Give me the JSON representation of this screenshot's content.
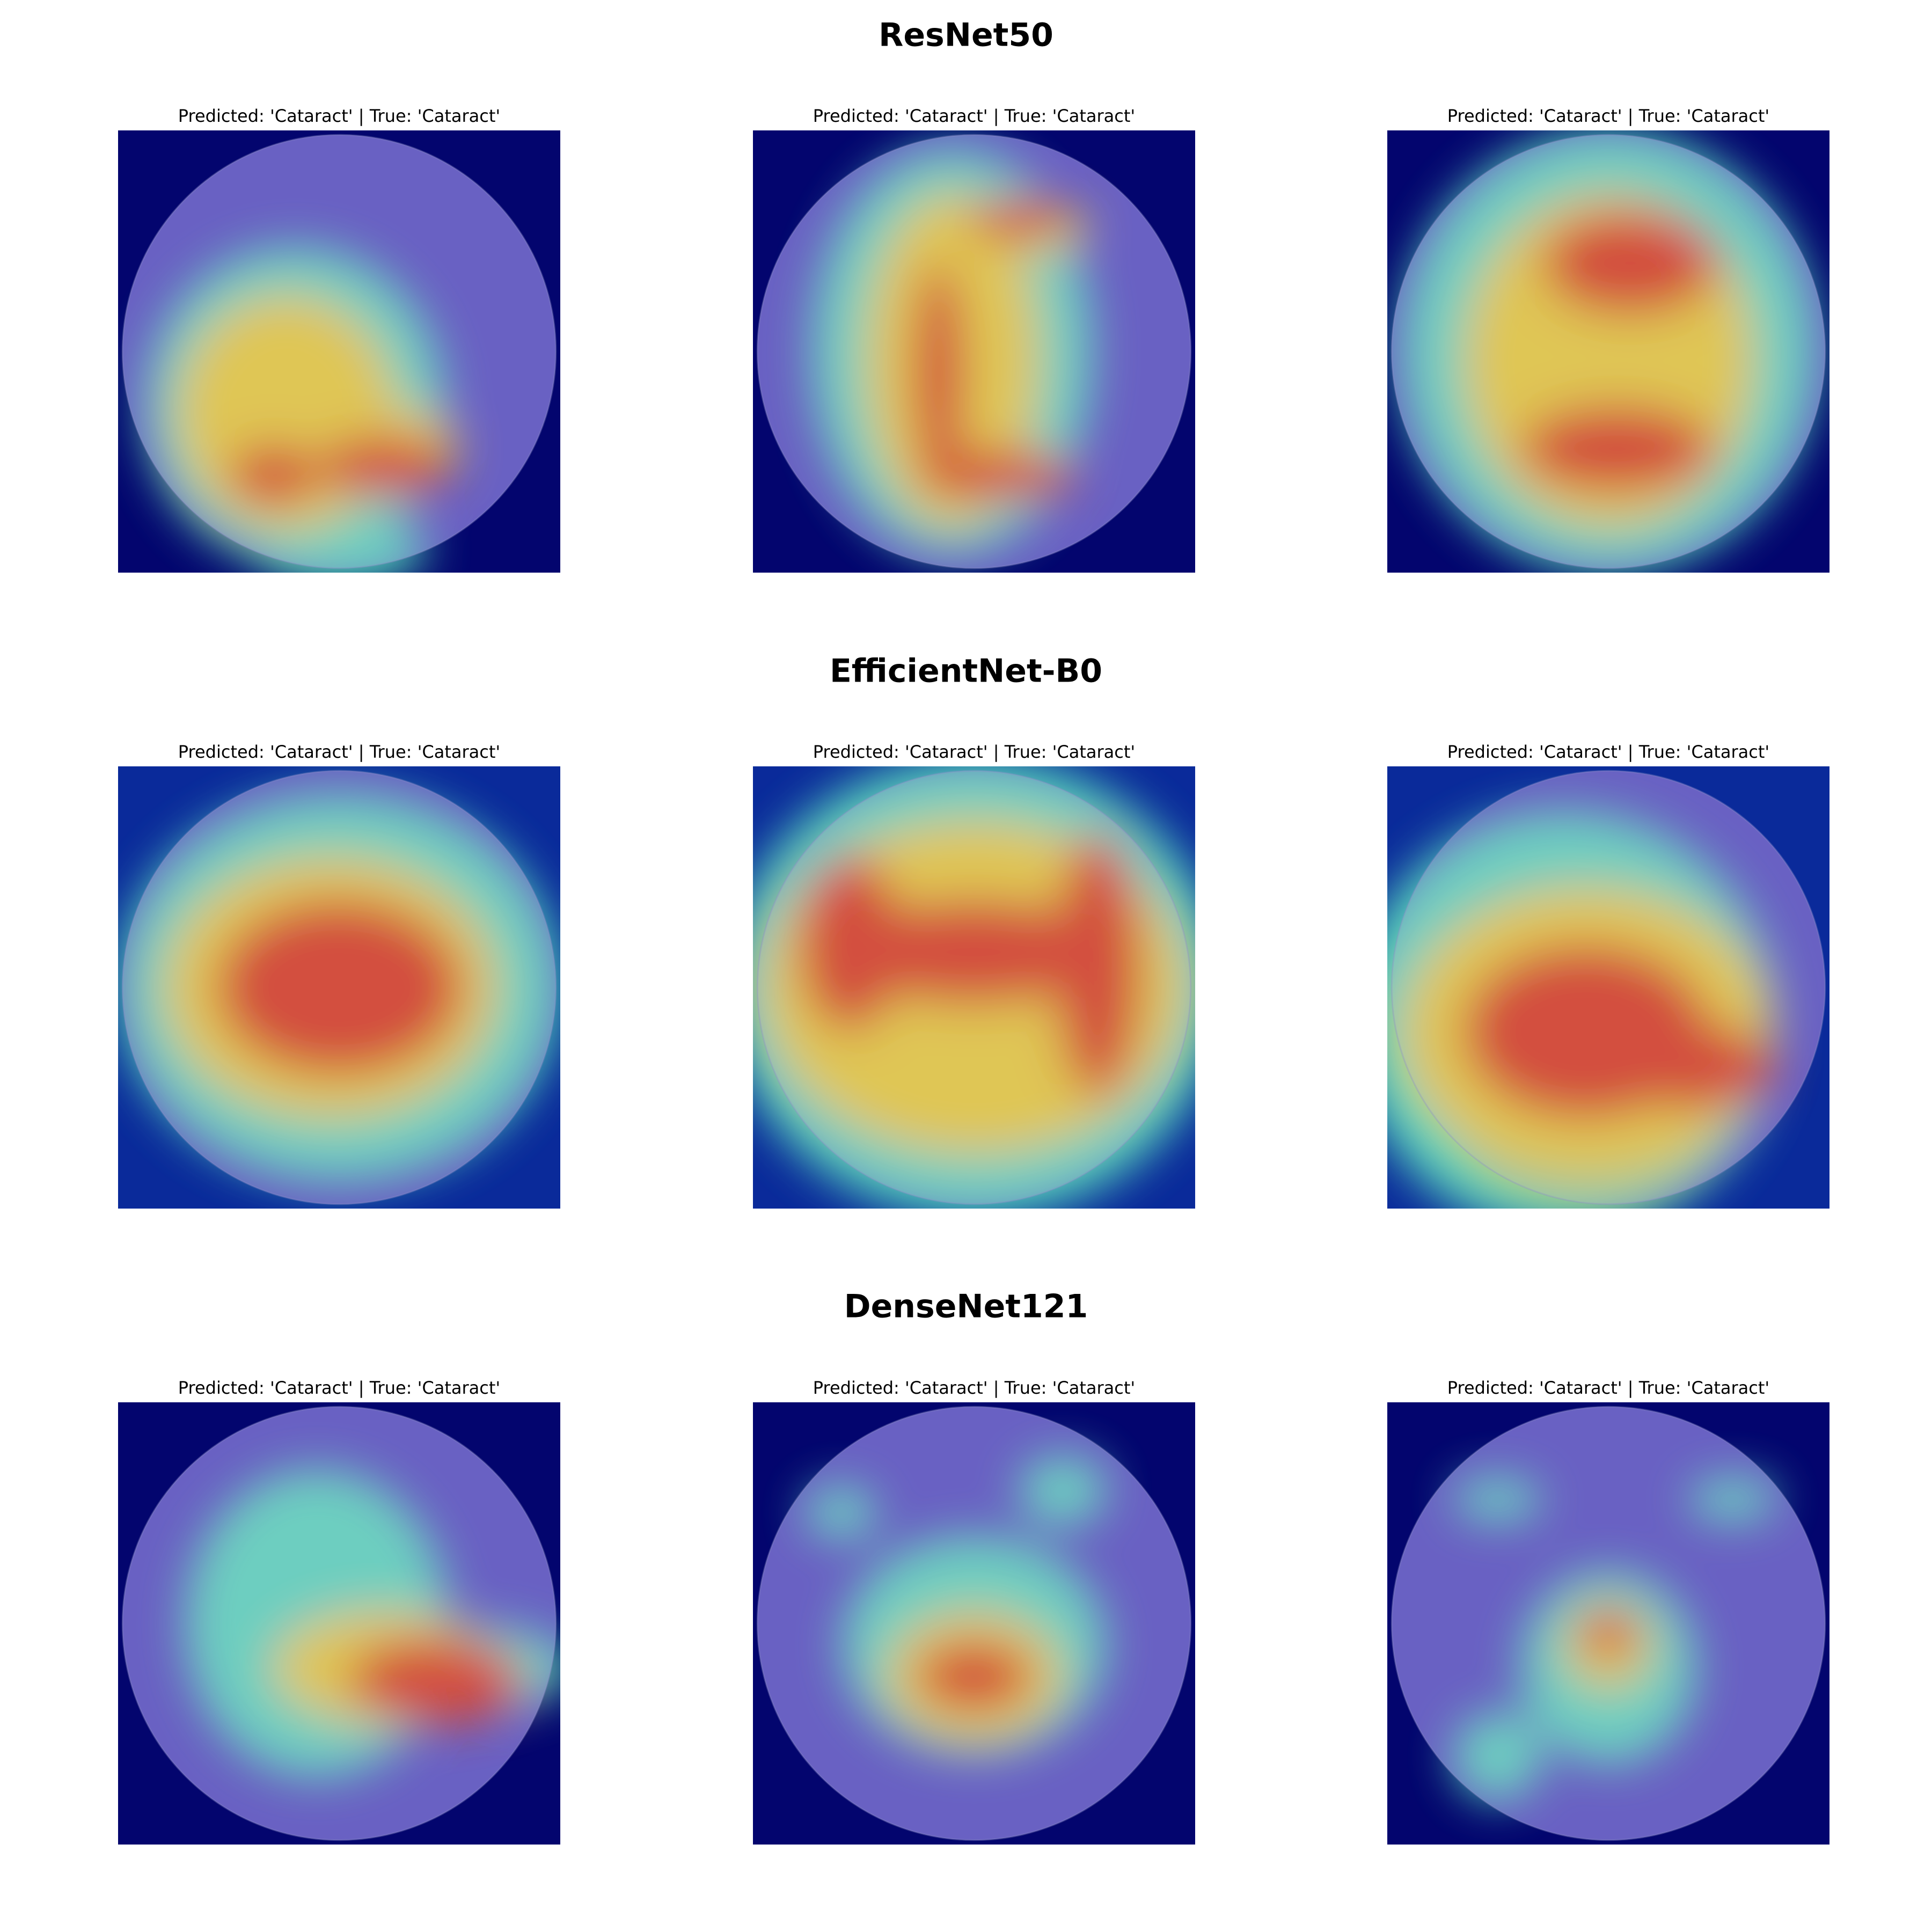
{
  "rows": [
    {
      "title": "ResNet50",
      "panels": [
        {
          "caption": "Predicted: 'Cataract' | True: 'Cataract'"
        },
        {
          "caption": "Predicted: 'Cataract' | True: 'Cataract'"
        },
        {
          "caption": "Predicted: 'Cataract' | True: 'Cataract'"
        }
      ]
    },
    {
      "title": "EfficientNet-B0",
      "panels": [
        {
          "caption": "Predicted: 'Cataract' | True: 'Cataract'"
        },
        {
          "caption": "Predicted: 'Cataract' | True: 'Cataract'"
        },
        {
          "caption": "Predicted: 'Cataract' | True: 'Cataract'"
        }
      ]
    },
    {
      "title": "DenseNet121",
      "panels": [
        {
          "caption": "Predicted: 'Cataract' | True: 'Cataract'"
        },
        {
          "caption": "Predicted: 'Cataract' | True: 'Cataract'"
        },
        {
          "caption": "Predicted: 'Cataract' | True: 'Cataract'"
        }
      ]
    }
  ]
}
